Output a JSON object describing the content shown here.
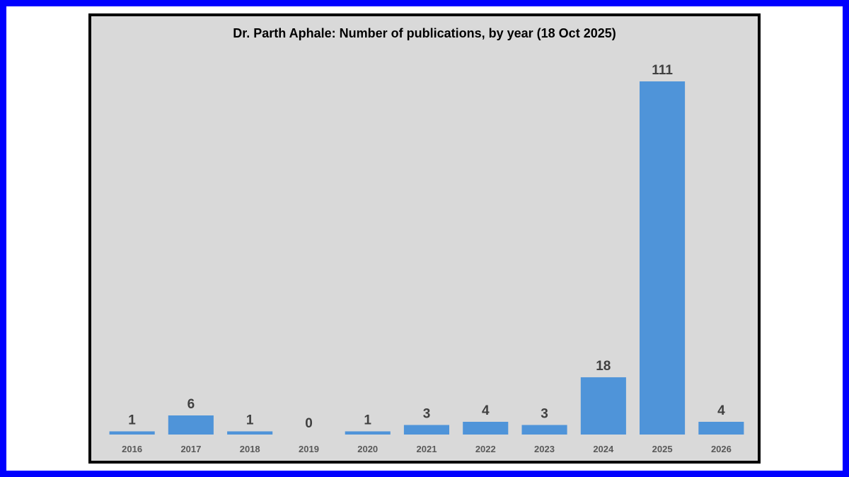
{
  "chart_data": {
    "type": "bar",
    "title": "Dr. Parth Aphale: Number of publications, by year (18 Oct 2025)",
    "xlabel": "",
    "ylabel": "",
    "categories": [
      "2016",
      "2017",
      "2018",
      "2019",
      "2020",
      "2021",
      "2022",
      "2023",
      "2024",
      "2025",
      "2026"
    ],
    "values": [
      1,
      6,
      1,
      0,
      1,
      3,
      4,
      3,
      18,
      111,
      4
    ],
    "ylim": [
      0,
      111
    ],
    "grid": false,
    "legend": "none",
    "data_labels": true,
    "colors": {
      "bar": "#4f94d9",
      "background": "#d9d9d9",
      "frame": "#0000ff",
      "border": "#000000"
    }
  }
}
